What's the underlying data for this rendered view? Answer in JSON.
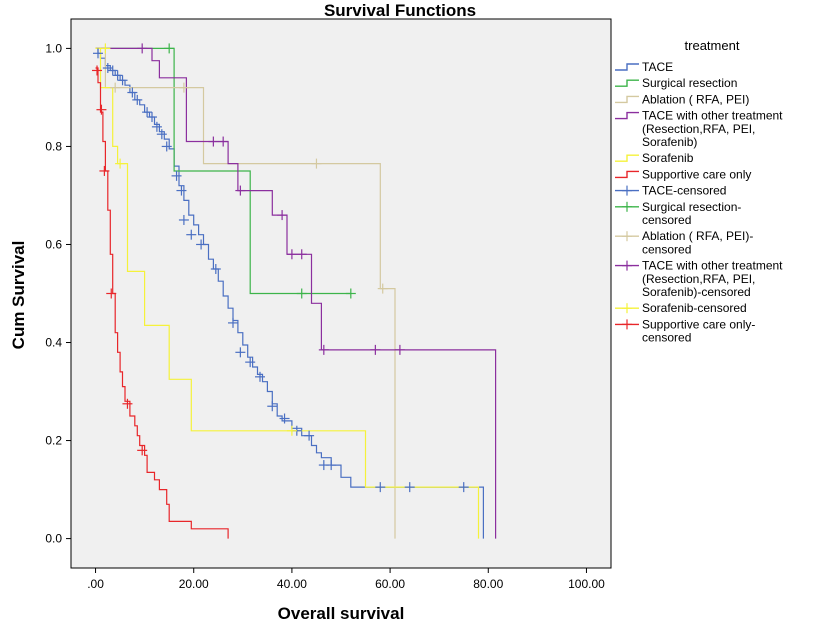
{
  "chart_data": {
    "type": "line",
    "title": "Survival Functions",
    "xlabel": "Overall survival",
    "ylabel": "Cum Survival",
    "xlim": [
      -5,
      105
    ],
    "ylim": [
      -0.06,
      1.06
    ],
    "x_ticks": [
      0,
      20,
      40,
      60,
      80,
      100
    ],
    "x_tick_labels": [
      ".00",
      "20.00",
      "40.00",
      "60.00",
      "80.00",
      "100.00"
    ],
    "y_ticks": [
      0.0,
      0.2,
      0.4,
      0.6,
      0.8,
      1.0
    ],
    "y_tick_labels": [
      "0.0",
      "0.2",
      "0.4",
      "0.6",
      "0.8",
      "1.0"
    ],
    "grid": false,
    "plot_background": "#f0f0f0",
    "legend": {
      "title": "treatment",
      "position": "right",
      "entries": [
        {
          "lines": [
            "TACE"
          ],
          "color": "#4a6fc2",
          "marker": "step"
        },
        {
          "lines": [
            "Surgical resection"
          ],
          "color": "#3cb44a",
          "marker": "step"
        },
        {
          "lines": [
            "Ablation ( RFA, PEI)"
          ],
          "color": "#d4c9a0",
          "marker": "step"
        },
        {
          "lines": [
            "TACE with other treatment",
            "(Resection,RFA, PEI,",
            "Sorafenib)"
          ],
          "color": "#8b2f9e",
          "marker": "step"
        },
        {
          "lines": [
            "Sorafenib"
          ],
          "color": "#f5f23a",
          "marker": "step"
        },
        {
          "lines": [
            "Supportive care only"
          ],
          "color": "#e8262a",
          "marker": "step"
        },
        {
          "lines": [
            "TACE-censored"
          ],
          "color": "#4a6fc2",
          "marker": "cross"
        },
        {
          "lines": [
            "Surgical resection-",
            "censored"
          ],
          "color": "#3cb44a",
          "marker": "cross"
        },
        {
          "lines": [
            "Ablation ( RFA, PEI)-",
            "censored"
          ],
          "color": "#d4c9a0",
          "marker": "cross"
        },
        {
          "lines": [
            "TACE with other treatment",
            "(Resection,RFA, PEI,",
            "Sorafenib)-censored"
          ],
          "color": "#8b2f9e",
          "marker": "cross"
        },
        {
          "lines": [
            "Sorafenib-censored"
          ],
          "color": "#f5f23a",
          "marker": "cross"
        },
        {
          "lines": [
            "Supportive care only-",
            "censored"
          ],
          "color": "#e8262a",
          "marker": "cross"
        }
      ]
    },
    "series": [
      {
        "name": "TACE",
        "color": "#4a6fc2",
        "steps": [
          [
            0,
            1.0
          ],
          [
            0.5,
            0.99
          ],
          [
            1.0,
            0.98
          ],
          [
            2.0,
            0.965
          ],
          [
            3.0,
            0.955
          ],
          [
            4.0,
            0.945
          ],
          [
            5.0,
            0.935
          ],
          [
            6.0,
            0.925
          ],
          [
            7.0,
            0.91
          ],
          [
            8.0,
            0.895
          ],
          [
            9.0,
            0.885
          ],
          [
            10.0,
            0.87
          ],
          [
            11.0,
            0.86
          ],
          [
            12.0,
            0.845
          ],
          [
            13.0,
            0.83
          ],
          [
            14.0,
            0.815
          ],
          [
            15.0,
            0.795
          ],
          [
            16.0,
            0.76
          ],
          [
            17.0,
            0.72
          ],
          [
            18.0,
            0.69
          ],
          [
            19.0,
            0.66
          ],
          [
            20.0,
            0.64
          ],
          [
            21.0,
            0.62
          ],
          [
            22.0,
            0.6
          ],
          [
            23.0,
            0.57
          ],
          [
            24.0,
            0.55
          ],
          [
            25.0,
            0.525
          ],
          [
            26.0,
            0.495
          ],
          [
            27.0,
            0.47
          ],
          [
            28.0,
            0.445
          ],
          [
            29.0,
            0.42
          ],
          [
            30.0,
            0.395
          ],
          [
            31.0,
            0.37
          ],
          [
            32.0,
            0.35
          ],
          [
            33.0,
            0.335
          ],
          [
            34.0,
            0.32
          ],
          [
            35.0,
            0.3
          ],
          [
            36.0,
            0.275
          ],
          [
            37.0,
            0.25
          ],
          [
            38.0,
            0.24
          ],
          [
            40.0,
            0.225
          ],
          [
            42.0,
            0.21
          ],
          [
            44.0,
            0.19
          ],
          [
            45.0,
            0.175
          ],
          [
            46.0,
            0.165
          ],
          [
            48.0,
            0.15
          ],
          [
            50.0,
            0.125
          ],
          [
            52.0,
            0.105
          ],
          [
            79.0,
            0.105
          ],
          [
            79.0,
            0.0
          ]
        ],
        "censored": [
          [
            0.5,
            0.99
          ],
          [
            2.5,
            0.96
          ],
          [
            3.5,
            0.955
          ],
          [
            4.5,
            0.945
          ],
          [
            5.5,
            0.935
          ],
          [
            7.5,
            0.91
          ],
          [
            8.5,
            0.895
          ],
          [
            10.5,
            0.87
          ],
          [
            11.5,
            0.86
          ],
          [
            12.5,
            0.84
          ],
          [
            13.5,
            0.825
          ],
          [
            14.5,
            0.8
          ],
          [
            16.5,
            0.74
          ],
          [
            17.5,
            0.71
          ],
          [
            18.0,
            0.65
          ],
          [
            19.5,
            0.62
          ],
          [
            21.5,
            0.6
          ],
          [
            24.5,
            0.55
          ],
          [
            28.0,
            0.44
          ],
          [
            29.5,
            0.38
          ],
          [
            31.5,
            0.36
          ],
          [
            33.5,
            0.33
          ],
          [
            36.0,
            0.27
          ],
          [
            38.5,
            0.245
          ],
          [
            41.0,
            0.22
          ],
          [
            43.5,
            0.21
          ],
          [
            46.5,
            0.15
          ],
          [
            48.0,
            0.15
          ],
          [
            58.0,
            0.105
          ],
          [
            64.0,
            0.105
          ],
          [
            75.0,
            0.105
          ]
        ]
      },
      {
        "name": "Surgical resection",
        "color": "#3cb44a",
        "steps": [
          [
            0,
            1.0
          ],
          [
            16.0,
            1.0
          ],
          [
            16.0,
            0.75
          ],
          [
            31.5,
            0.75
          ],
          [
            31.5,
            0.5
          ],
          [
            52.0,
            0.5
          ]
        ],
        "censored": [
          [
            15.0,
            1.0
          ],
          [
            42.0,
            0.5
          ],
          [
            52.0,
            0.5
          ]
        ]
      },
      {
        "name": "Ablation ( RFA, PEI)",
        "color": "#d4c9a0",
        "steps": [
          [
            0,
            1.0
          ],
          [
            2.0,
            1.0
          ],
          [
            2.0,
            0.92
          ],
          [
            22.0,
            0.92
          ],
          [
            22.0,
            0.765
          ],
          [
            58.0,
            0.765
          ],
          [
            58.0,
            0.51
          ],
          [
            61.0,
            0.51
          ],
          [
            61.0,
            0.0
          ]
        ],
        "censored": [
          [
            4.0,
            0.92
          ],
          [
            18.0,
            0.92
          ],
          [
            45.0,
            0.765
          ],
          [
            58.5,
            0.51
          ]
        ]
      },
      {
        "name": "TACE with other treatment (Resection,RFA, PEI, Sorafenib)",
        "color": "#8b2f9e",
        "steps": [
          [
            0,
            1.0
          ],
          [
            11.5,
            1.0
          ],
          [
            11.5,
            0.975
          ],
          [
            13.0,
            0.975
          ],
          [
            13.0,
            0.94
          ],
          [
            18.5,
            0.94
          ],
          [
            18.5,
            0.81
          ],
          [
            27.0,
            0.81
          ],
          [
            27.0,
            0.765
          ],
          [
            29.0,
            0.765
          ],
          [
            29.0,
            0.71
          ],
          [
            36.0,
            0.71
          ],
          [
            36.0,
            0.66
          ],
          [
            39.0,
            0.66
          ],
          [
            39.0,
            0.58
          ],
          [
            44.0,
            0.58
          ],
          [
            44.0,
            0.48
          ],
          [
            46.0,
            0.48
          ],
          [
            46.0,
            0.385
          ],
          [
            81.5,
            0.385
          ],
          [
            81.5,
            0.0
          ]
        ],
        "censored": [
          [
            9.5,
            1.0
          ],
          [
            24.0,
            0.81
          ],
          [
            26.0,
            0.81
          ],
          [
            29.5,
            0.71
          ],
          [
            38.0,
            0.66
          ],
          [
            40.0,
            0.58
          ],
          [
            42.0,
            0.58
          ],
          [
            46.5,
            0.385
          ],
          [
            57.0,
            0.385
          ],
          [
            62.0,
            0.385
          ]
        ]
      },
      {
        "name": "Sorafenib",
        "color": "#f5f23a",
        "steps": [
          [
            0,
            1.0
          ],
          [
            1.0,
            1.0
          ],
          [
            1.0,
            0.92
          ],
          [
            3.5,
            0.92
          ],
          [
            3.5,
            0.8
          ],
          [
            4.5,
            0.8
          ],
          [
            4.5,
            0.765
          ],
          [
            6.5,
            0.765
          ],
          [
            6.5,
            0.545
          ],
          [
            10.0,
            0.545
          ],
          [
            10.0,
            0.435
          ],
          [
            15.0,
            0.435
          ],
          [
            15.0,
            0.325
          ],
          [
            19.5,
            0.325
          ],
          [
            19.5,
            0.22
          ],
          [
            55.0,
            0.22
          ],
          [
            55.0,
            0.105
          ],
          [
            78.0,
            0.105
          ],
          [
            78.0,
            0.0
          ]
        ],
        "censored": [
          [
            2.0,
            1.0
          ],
          [
            5.0,
            0.765
          ],
          [
            40.0,
            0.22
          ]
        ]
      },
      {
        "name": "Supportive care only",
        "color": "#e8262a",
        "steps": [
          [
            0,
            0.96
          ],
          [
            0.5,
            0.93
          ],
          [
            1.0,
            0.87
          ],
          [
            1.5,
            0.81
          ],
          [
            2.0,
            0.75
          ],
          [
            2.5,
            0.67
          ],
          [
            3.0,
            0.58
          ],
          [
            3.5,
            0.5
          ],
          [
            4.0,
            0.42
          ],
          [
            4.5,
            0.38
          ],
          [
            5.0,
            0.34
          ],
          [
            5.5,
            0.31
          ],
          [
            6.0,
            0.28
          ],
          [
            7.0,
            0.25
          ],
          [
            8.0,
            0.23
          ],
          [
            8.5,
            0.21
          ],
          [
            9.0,
            0.19
          ],
          [
            10.0,
            0.17
          ],
          [
            10.5,
            0.135
          ],
          [
            12.0,
            0.12
          ],
          [
            13.0,
            0.1
          ],
          [
            14.5,
            0.07
          ],
          [
            15.0,
            0.035
          ],
          [
            19.5,
            0.035
          ],
          [
            19.5,
            0.02
          ],
          [
            27.0,
            0.02
          ],
          [
            27.0,
            0.0
          ]
        ],
        "censored": [
          [
            0.3,
            0.955
          ],
          [
            1.2,
            0.875
          ],
          [
            1.8,
            0.75
          ],
          [
            3.2,
            0.5
          ],
          [
            6.5,
            0.275
          ],
          [
            9.5,
            0.18
          ]
        ]
      }
    ]
  }
}
